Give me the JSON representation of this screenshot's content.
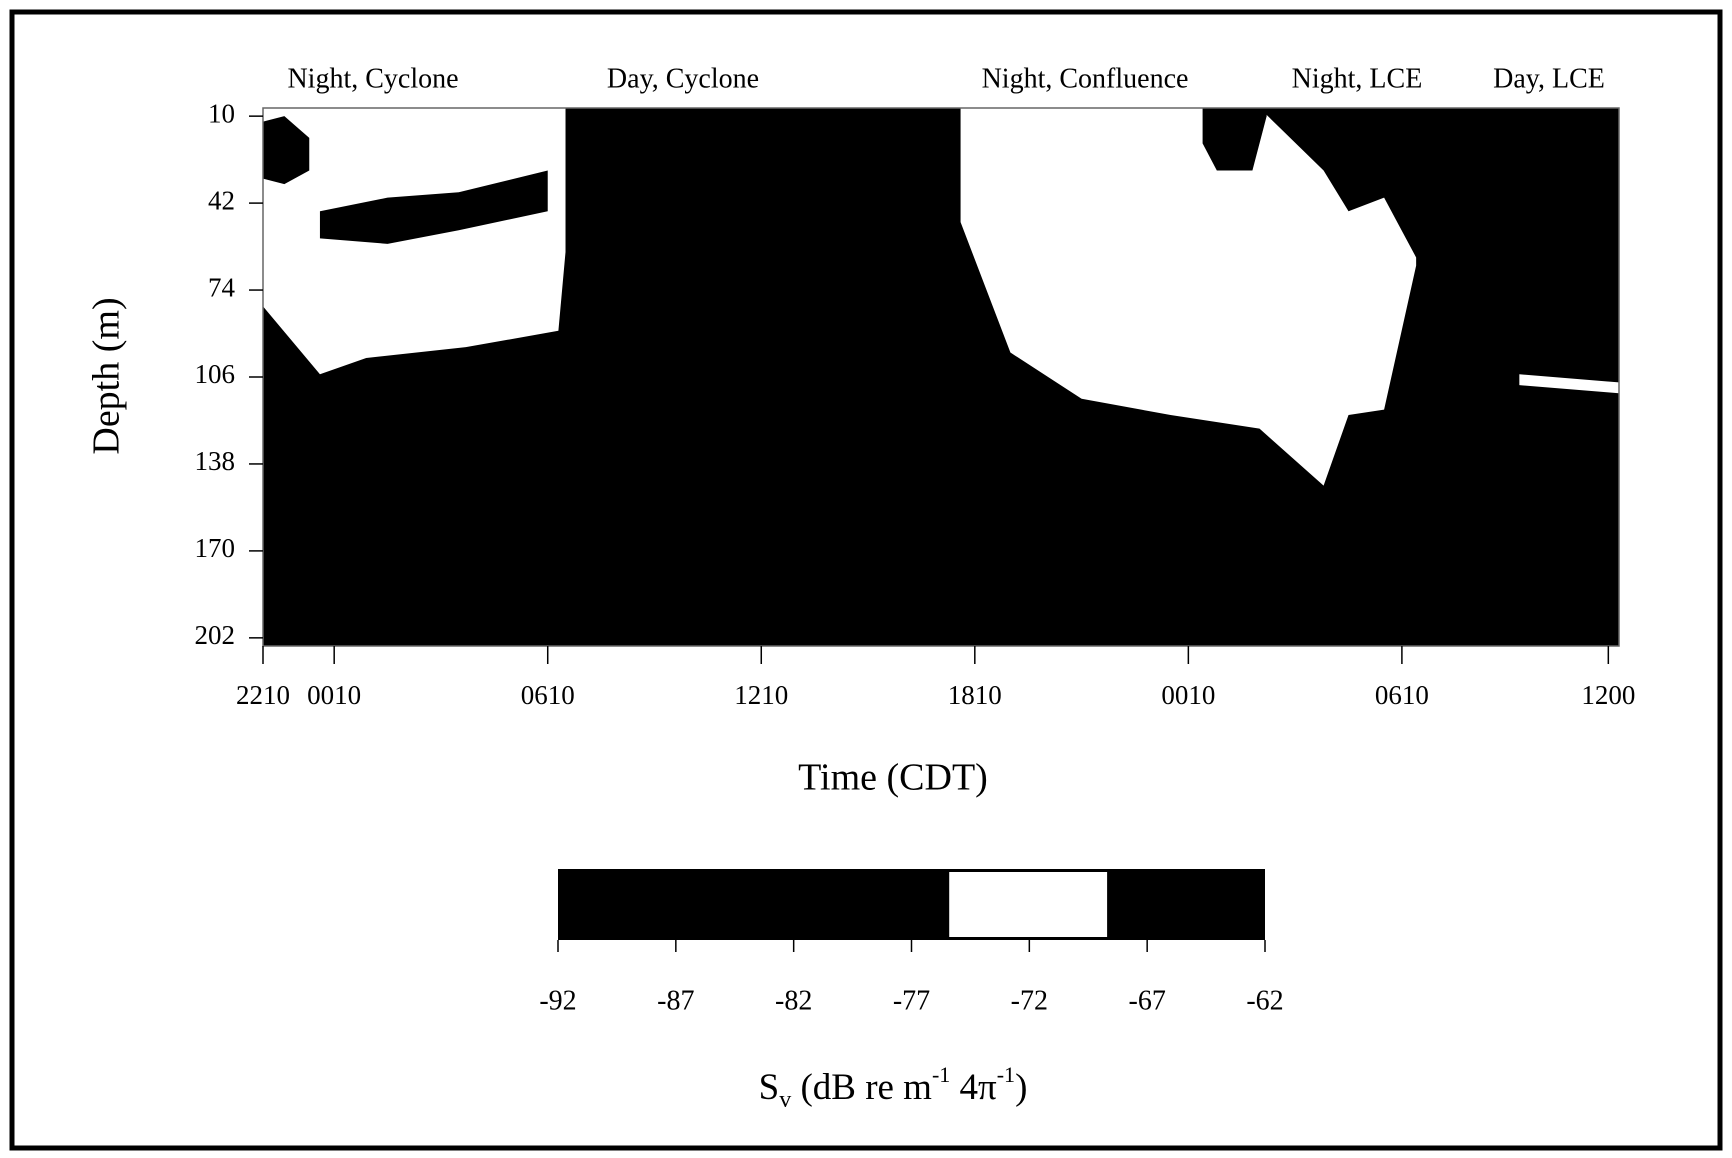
{
  "chart_data": {
    "type": "echogram",
    "annotations": [
      "Night, Cyclone",
      "Day, Cyclone",
      "Night, Confluence",
      "Night, LCE",
      "Day, LCE"
    ],
    "x_label": "Time (CDT)",
    "y_label": "Depth (m)",
    "xlim": [
      0,
      38.1
    ],
    "xticks": [
      {
        "value": 0,
        "label": "2210"
      },
      {
        "value": 2,
        "label": "0010"
      },
      {
        "value": 8,
        "label": "0610"
      },
      {
        "value": 14,
        "label": "1210"
      },
      {
        "value": 20,
        "label": "1810"
      },
      {
        "value": 26,
        "label": "0010"
      },
      {
        "value": 32,
        "label": "0610"
      },
      {
        "value": 37.8,
        "label": "1200"
      }
    ],
    "ylim": [
      7,
      205
    ],
    "yticks": [
      10,
      42,
      74,
      106,
      138,
      170,
      202
    ],
    "y_inverted": true,
    "background": "#000000",
    "series": [
      {
        "color": "#ffffff",
        "x": [
          0,
          1.6,
          2.9,
          5.7,
          8.3,
          8.5
        ],
        "top": [
          7,
          7,
          7,
          7,
          7,
          7
        ],
        "bottom": [
          80,
          105,
          99,
          95,
          89,
          60
        ]
      },
      {
        "color": "#000000",
        "x": [
          0,
          0.6,
          1.3
        ],
        "top": [
          12,
          10,
          18
        ],
        "bottom": [
          33,
          35,
          30
        ]
      },
      {
        "color": "#000000",
        "x": [
          1.6,
          3.5,
          5.5,
          8
        ],
        "top": [
          45,
          40,
          38,
          30
        ],
        "bottom": [
          55,
          57,
          52,
          45
        ]
      },
      {
        "color": "#ffffff",
        "x": [
          19.6,
          21,
          23,
          25.5,
          28,
          29.8,
          30.5,
          31.5,
          32.4
        ],
        "top": [
          7,
          7,
          7,
          7,
          7,
          30,
          45,
          40,
          62
        ],
        "bottom": [
          49,
          97,
          114,
          120,
          125,
          146,
          120,
          118,
          65
        ]
      },
      {
        "color": "#000000",
        "x": [
          26.4,
          26.8,
          27.8,
          28.2
        ],
        "top": [
          7,
          7,
          7,
          7
        ],
        "bottom": [
          20,
          30,
          30,
          10
        ]
      },
      {
        "color": "#ffffff",
        "x": [
          35.3,
          38.1
        ],
        "top": [
          105,
          108
        ],
        "bottom": [
          109,
          112
        ]
      }
    ],
    "colorbar": {
      "lim": [
        -92,
        -62
      ],
      "ticks": [
        -92,
        -87,
        -82,
        -77,
        -72,
        -67,
        -62
      ],
      "white_range": [
        -75.4,
        -68.7
      ],
      "label_parts": [
        "S",
        "v",
        " (dB re m",
        "-1",
        " 4π",
        "-1",
        ")"
      ]
    }
  }
}
